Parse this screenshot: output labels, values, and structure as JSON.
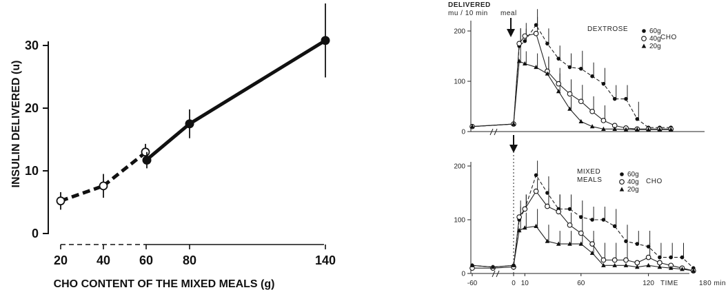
{
  "chart_data": [
    {
      "type": "line",
      "ylabel": "INSULIN DELIVERED (u)",
      "xlabel": "CHO CONTENT OF THE MIXED MEALS (g)",
      "ylim": [
        0,
        30
      ],
      "y_ticks": [
        "0",
        "10",
        "20",
        "30"
      ],
      "x_ticks": [
        "20",
        "40",
        "60",
        "80",
        "140"
      ],
      "points": [
        {
          "x": 20,
          "y": 5.2,
          "err": 1.4,
          "marker": "open"
        },
        {
          "x": 40,
          "y": 7.6,
          "err": 1.9,
          "marker": "open"
        },
        {
          "x": 60,
          "y": 13.0,
          "err": 1.3,
          "marker": "open"
        },
        {
          "x": 60,
          "y": 11.7,
          "err": 1.3,
          "marker": "filled"
        },
        {
          "x": 80,
          "y": 17.5,
          "err": 2.3,
          "marker": "filled"
        },
        {
          "x": 140,
          "y": 30.8,
          "err": 5.9,
          "marker": "filled"
        }
      ]
    },
    {
      "type": "line",
      "panel": "top",
      "ylabel_line1": "DELIVERED",
      "ylabel_line2": "mu / 10 min",
      "annotation": "meal",
      "legend_title": "DEXTROSE",
      "legend_unit": "CHO",
      "ylim": [
        0,
        200
      ],
      "y_ticks": [
        "0",
        "100",
        "200"
      ],
      "series": [
        {
          "name": "60g",
          "marker": "filled-circle",
          "x": [
            -60,
            0,
            5,
            10,
            20,
            30,
            40,
            50,
            60,
            70,
            80,
            90,
            100,
            110,
            120,
            130,
            140
          ],
          "y": [
            10,
            15,
            170,
            180,
            212,
            175,
            145,
            128,
            125,
            110,
            95,
            65,
            65,
            25,
            8,
            8,
            8
          ]
        },
        {
          "name": "40g",
          "marker": "open-circle",
          "x": [
            -60,
            0,
            5,
            10,
            20,
            30,
            40,
            50,
            60,
            70,
            80,
            90,
            100,
            110,
            120,
            130,
            140
          ],
          "y": [
            10,
            15,
            175,
            190,
            195,
            120,
            95,
            75,
            60,
            40,
            22,
            12,
            7,
            5,
            5,
            5,
            5
          ]
        },
        {
          "name": "20g",
          "marker": "filled-triangle",
          "x": [
            -60,
            0,
            5,
            10,
            20,
            30,
            40,
            50,
            60,
            70,
            80,
            90,
            100,
            110,
            120,
            130,
            140
          ],
          "y": [
            10,
            15,
            140,
            135,
            128,
            115,
            80,
            45,
            20,
            10,
            5,
            5,
            4,
            4,
            4,
            4,
            4
          ]
        }
      ]
    },
    {
      "type": "line",
      "panel": "bottom",
      "legend_title_line1": "MIXED",
      "legend_title_line2": "MEALS",
      "legend_unit": "CHO",
      "xlabel": "TIME",
      "x_unit": "180 min",
      "ylim": [
        0,
        200
      ],
      "y_ticks": [
        "0",
        "100",
        "200"
      ],
      "x_ticks": [
        "-60",
        "0",
        "10",
        "60",
        "120"
      ],
      "series": [
        {
          "name": "60g",
          "marker": "filled-circle",
          "x": [
            -60,
            -30,
            0,
            5,
            10,
            20,
            30,
            40,
            50,
            60,
            70,
            80,
            90,
            100,
            110,
            120,
            130,
            140,
            150,
            160
          ],
          "y": [
            15,
            12,
            15,
            100,
            120,
            183,
            150,
            120,
            120,
            105,
            100,
            100,
            88,
            60,
            55,
            50,
            30,
            30,
            30,
            10
          ]
        },
        {
          "name": "40g",
          "marker": "open-circle",
          "x": [
            -60,
            -30,
            0,
            5,
            10,
            20,
            30,
            40,
            50,
            60,
            70,
            80,
            90,
            100,
            110,
            120,
            130,
            140,
            150,
            160
          ],
          "y": [
            10,
            10,
            12,
            105,
            120,
            153,
            125,
            115,
            90,
            75,
            55,
            25,
            25,
            25,
            20,
            30,
            20,
            15,
            10,
            5
          ]
        },
        {
          "name": "20g",
          "marker": "filled-triangle",
          "x": [
            -60,
            -30,
            0,
            5,
            10,
            20,
            30,
            40,
            50,
            60,
            70,
            80,
            90,
            100,
            110,
            120,
            130,
            140,
            150,
            160
          ],
          "y": [
            15,
            12,
            15,
            80,
            85,
            88,
            60,
            55,
            55,
            55,
            38,
            15,
            15,
            15,
            12,
            15,
            12,
            10,
            8,
            5
          ]
        }
      ]
    }
  ]
}
